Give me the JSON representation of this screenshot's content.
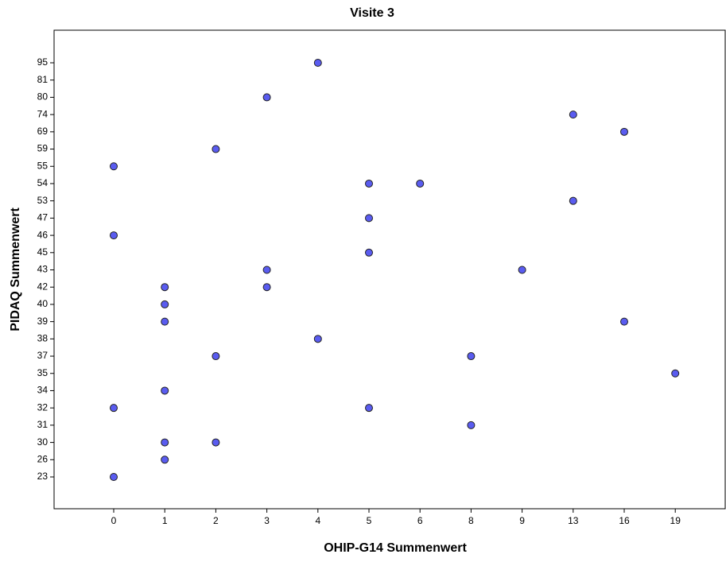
{
  "chart_data": {
    "type": "scatter",
    "title": "Visite 3",
    "x_label": "OHIP-G14 Summenwert",
    "y_label": "PIDAQ Summenwert",
    "xticks": [
      0,
      1,
      2,
      3,
      4,
      5,
      6,
      8,
      9,
      13,
      16,
      19
    ],
    "yticks": [
      23,
      26,
      30,
      31,
      32,
      34,
      35,
      37,
      38,
      39,
      40,
      42,
      43,
      45,
      46,
      47,
      53,
      54,
      55,
      59,
      69,
      74,
      80,
      81,
      95
    ],
    "series": [
      {
        "color": "#5a5cf0",
        "x": [
          4,
          3,
          13,
          16,
          2,
          0,
          5,
          6,
          13,
          5,
          0,
          5,
          3,
          9,
          1,
          3,
          1,
          1,
          16,
          4,
          2,
          8,
          19,
          1,
          0,
          5,
          8,
          1,
          2,
          1,
          0
        ],
        "y": [
          95,
          80,
          74,
          69,
          59,
          55,
          54,
          54,
          53,
          47,
          46,
          45,
          43,
          43,
          42,
          42,
          40,
          39,
          39,
          38,
          37,
          37,
          35,
          34,
          32,
          32,
          31,
          30,
          30,
          26,
          23
        ]
      }
    ]
  }
}
